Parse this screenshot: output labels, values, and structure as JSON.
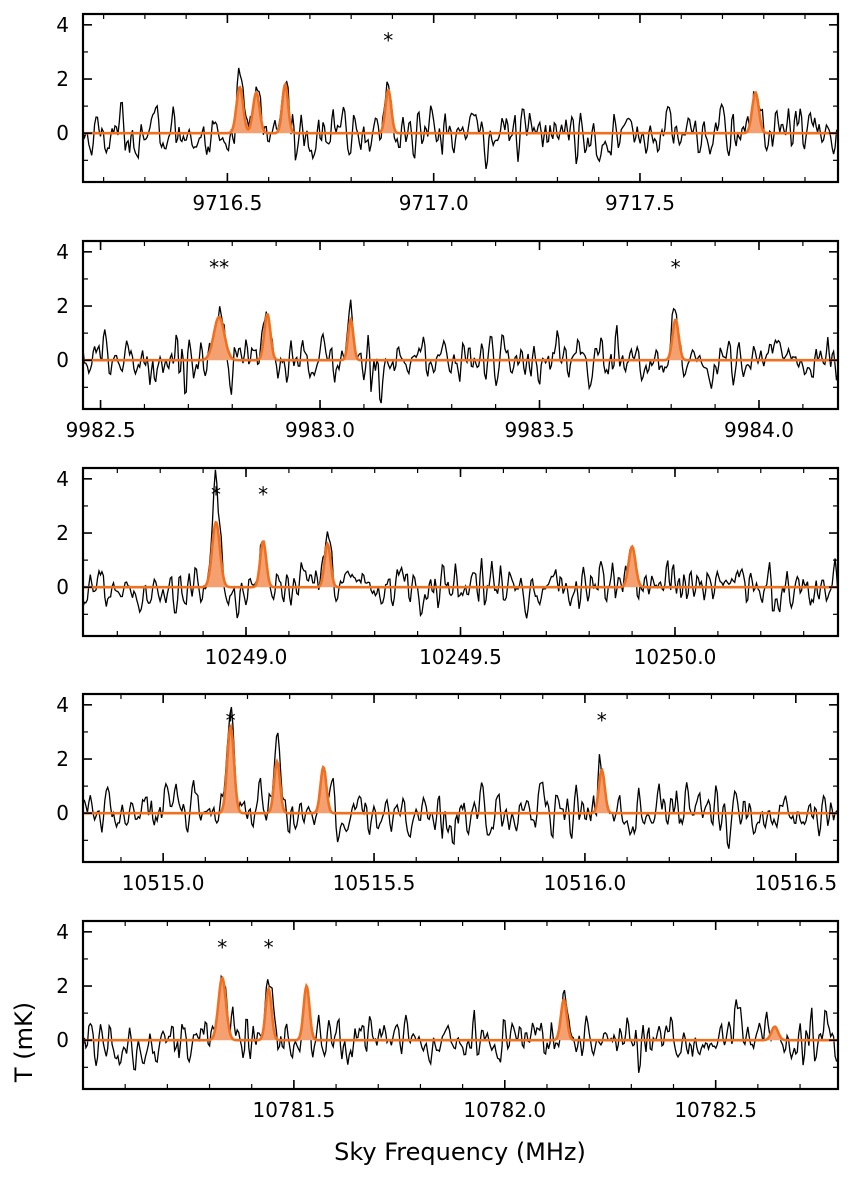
{
  "figure": {
    "xlabel": "Sky Frequency (MHz)",
    "ylabel": "T (mK)"
  },
  "colors": {
    "data": "#000000",
    "model": "#f07020",
    "model_fill": "#f4a070"
  },
  "chart_data": [
    {
      "type": "line",
      "xlim": [
        9716.15,
        9717.98
      ],
      "ylim": [
        -1.8,
        4.4
      ],
      "xticks": [
        9716.5,
        9717.0,
        9717.5
      ],
      "xtick_labels": [
        "9716.5",
        "9717.0",
        "9717.5"
      ],
      "yticks": [
        0,
        2,
        4
      ],
      "ytick_labels": [
        "0",
        "2",
        "4"
      ],
      "lines": [
        {
          "x": 9716.53,
          "amp": 1.7,
          "w": 0.008
        },
        {
          "x": 9716.57,
          "amp": 1.5,
          "w": 0.008
        },
        {
          "x": 9716.64,
          "amp": 1.8,
          "w": 0.007
        },
        {
          "x": 9716.89,
          "amp": 1.6,
          "w": 0.007
        },
        {
          "x": 9717.78,
          "amp": 1.5,
          "w": 0.008
        }
      ],
      "markers": [
        {
          "x": 9716.89,
          "y": 3.6,
          "label": "*"
        }
      ]
    },
    {
      "type": "line",
      "xlim": [
        9982.46,
        9984.18
      ],
      "ylim": [
        -1.8,
        4.4
      ],
      "xticks": [
        9982.5,
        9983.0,
        9983.5,
        9984.0
      ],
      "xtick_labels": [
        "9982.5",
        "9983.0",
        "9983.5",
        "9984.0"
      ],
      "yticks": [
        0,
        2,
        4
      ],
      "ytick_labels": [
        "0",
        "2",
        "4"
      ],
      "lines": [
        {
          "x": 9982.77,
          "amp": 1.6,
          "w": 0.012
        },
        {
          "x": 9982.88,
          "amp": 1.7,
          "w": 0.007
        },
        {
          "x": 9983.07,
          "amp": 1.5,
          "w": 0.006
        },
        {
          "x": 9983.81,
          "amp": 1.5,
          "w": 0.007
        }
      ],
      "markers": [
        {
          "x": 9982.77,
          "y": 3.6,
          "label": "**"
        },
        {
          "x": 9983.81,
          "y": 3.6,
          "label": "*"
        }
      ]
    },
    {
      "type": "line",
      "xlim": [
        10248.62,
        10250.38
      ],
      "ylim": [
        -1.8,
        4.4
      ],
      "xticks": [
        10249.0,
        10249.5,
        10250.0
      ],
      "xtick_labels": [
        "10249.0",
        "10249.5",
        "10250.0"
      ],
      "yticks": [
        0,
        2,
        4
      ],
      "ytick_labels": [
        "0",
        "2",
        "4"
      ],
      "lines": [
        {
          "x": 10248.93,
          "amp": 2.4,
          "w": 0.009
        },
        {
          "x": 10249.04,
          "amp": 1.7,
          "w": 0.007
        },
        {
          "x": 10249.19,
          "amp": 1.6,
          "w": 0.007
        },
        {
          "x": 10249.9,
          "amp": 1.5,
          "w": 0.008
        }
      ],
      "markers": [
        {
          "x": 10248.93,
          "y": 3.6,
          "label": "*"
        },
        {
          "x": 10249.04,
          "y": 3.6,
          "label": "*"
        }
      ]
    },
    {
      "type": "line",
      "xlim": [
        10514.81,
        10516.6
      ],
      "ylim": [
        -1.8,
        4.4
      ],
      "xticks": [
        10515.0,
        10515.5,
        10516.0,
        10516.5
      ],
      "xtick_labels": [
        "10515.0",
        "10515.5",
        "10516.0",
        "10516.5"
      ],
      "yticks": [
        0,
        2,
        4
      ],
      "ytick_labels": [
        "0",
        "2",
        "4"
      ],
      "lines": [
        {
          "x": 10515.16,
          "amp": 3.2,
          "w": 0.008
        },
        {
          "x": 10515.27,
          "amp": 1.9,
          "w": 0.007
        },
        {
          "x": 10515.38,
          "amp": 1.7,
          "w": 0.007
        },
        {
          "x": 10516.04,
          "amp": 1.6,
          "w": 0.007
        }
      ],
      "markers": [
        {
          "x": 10515.16,
          "y": 3.6,
          "label": "*"
        },
        {
          "x": 10516.04,
          "y": 3.6,
          "label": "*"
        }
      ]
    },
    {
      "type": "line",
      "xlim": [
        10781.0,
        10782.79
      ],
      "ylim": [
        -1.8,
        4.4
      ],
      "xticks": [
        10781.5,
        10782.0,
        10782.5
      ],
      "xtick_labels": [
        "10781.5",
        "10782.0",
        "10782.5"
      ],
      "yticks": [
        0,
        2,
        4
      ],
      "ytick_labels": [
        "0",
        "2",
        "4"
      ],
      "lines": [
        {
          "x": 10781.33,
          "amp": 2.3,
          "w": 0.009
        },
        {
          "x": 10781.44,
          "amp": 1.9,
          "w": 0.007
        },
        {
          "x": 10781.53,
          "amp": 2.0,
          "w": 0.007
        },
        {
          "x": 10782.14,
          "amp": 1.5,
          "w": 0.007
        },
        {
          "x": 10782.64,
          "amp": 0.5,
          "w": 0.008
        }
      ],
      "markers": [
        {
          "x": 10781.33,
          "y": 3.6,
          "label": "*"
        },
        {
          "x": 10781.44,
          "y": 3.6,
          "label": "*"
        }
      ]
    }
  ]
}
